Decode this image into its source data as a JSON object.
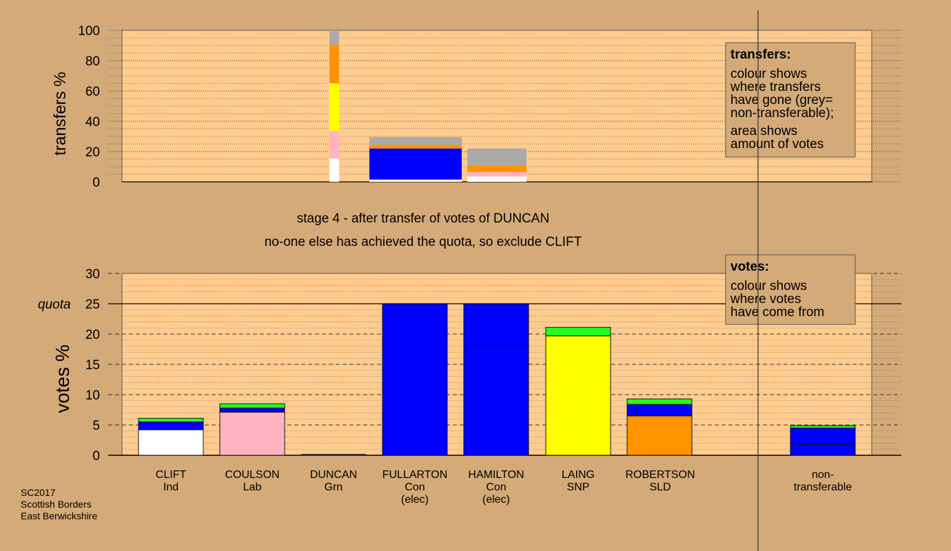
{
  "colors": {
    "background": "#d4aa78",
    "plot_bg": "#ffcc8f",
    "white": "#ffffff",
    "pink": "#ffb3c0",
    "blue": "#0000ff",
    "yellow": "#ffff00",
    "orange": "#ff9400",
    "green": "#22ff22",
    "grey": "#aaaaaa"
  },
  "stage_lines": {
    "line1": "stage 4 - after transfer of votes of DUNCAN",
    "line2": "no-one else has achieved the quota, so exclude CLIFT"
  },
  "footer": {
    "line1": "SC2017",
    "line2": "Scottish Borders",
    "line3": "East Berwickshire"
  },
  "chart_data": [
    {
      "type": "bar",
      "ylabel": "transfers %",
      "ylim": [
        0,
        100
      ],
      "yticks": [
        "0",
        "20",
        "40",
        "60",
        "80",
        "100"
      ],
      "legend": {
        "title": "transfers:",
        "lines": [
          "colour shows",
          "where transfers",
          "have gone (grey=",
          "non-transferable);",
          "area shows",
          "amount of votes"
        ]
      },
      "bars": [
        {
          "name": "DUNCAN",
          "width_class": "narrow",
          "segments": [
            {
              "color": "white",
              "from": 0,
              "to": 15.5
            },
            {
              "color": "pink",
              "from": 15.5,
              "to": 33.5
            },
            {
              "color": "yellow",
              "from": 33.5,
              "to": 65
            },
            {
              "color": "orange",
              "from": 65,
              "to": 90.5
            },
            {
              "color": "grey",
              "from": 90.5,
              "to": 100
            }
          ]
        },
        {
          "name": "FULLARTON",
          "width_class": "wide",
          "segments": [
            {
              "color": "white",
              "from": 0,
              "to": 1.5
            },
            {
              "color": "blue",
              "from": 1.5,
              "to": 22
            },
            {
              "color": "orange",
              "from": 22,
              "to": 24.5
            },
            {
              "color": "grey",
              "from": 24.5,
              "to": 29.5
            }
          ]
        },
        {
          "name": "HAMILTON",
          "width_class": "wide",
          "segments": [
            {
              "color": "white",
              "from": 0,
              "to": 3.5
            },
            {
              "color": "pink",
              "from": 3.5,
              "to": 6.5
            },
            {
              "color": "orange",
              "from": 6.5,
              "to": 11
            },
            {
              "color": "grey",
              "from": 11,
              "to": 22
            }
          ]
        }
      ]
    },
    {
      "type": "bar",
      "ylabel": "votes %",
      "ylim": [
        0,
        30
      ],
      "yticks": [
        "0",
        "5",
        "10",
        "15",
        "20",
        "25",
        "30"
      ],
      "quota": {
        "label": "quota",
        "value": 25
      },
      "legend": {
        "title": "votes:",
        "lines": [
          "colour shows",
          "where votes",
          "have come from"
        ]
      },
      "candidates": [
        {
          "name": "CLIFT",
          "party": "Ind",
          "note": "",
          "segments": [
            {
              "color": "white",
              "from": 0,
              "to": 4.2
            },
            {
              "color": "blue",
              "from": 4.2,
              "to": 5.5
            },
            {
              "color": "green",
              "from": 5.5,
              "to": 6.1
            }
          ]
        },
        {
          "name": "COULSON",
          "party": "Lab",
          "note": "",
          "segments": [
            {
              "color": "pink",
              "from": 0,
              "to": 7.1
            },
            {
              "color": "blue",
              "from": 7.1,
              "to": 7.8
            },
            {
              "color": "green",
              "from": 7.8,
              "to": 8.5
            }
          ]
        },
        {
          "name": "DUNCAN",
          "party": "Grn",
          "note": "",
          "segments": []
        },
        {
          "name": "FULLARTON",
          "party": "Con",
          "note": "(elec)",
          "segments": [
            {
              "color": "blue",
              "from": 0,
              "to": 25
            }
          ]
        },
        {
          "name": "HAMILTON",
          "party": "Con",
          "note": "(elec)",
          "segments": [
            {
              "color": "blue",
              "from": 0,
              "to": 18.1
            },
            {
              "color": "blue",
              "from": 18.1,
              "to": 25
            }
          ]
        },
        {
          "name": "LAING",
          "party": "SNP",
          "note": "",
          "segments": [
            {
              "color": "yellow",
              "from": 0,
              "to": 19.7
            },
            {
              "color": "green",
              "from": 19.7,
              "to": 21.1
            }
          ]
        },
        {
          "name": "ROBERTSON",
          "party": "SLD",
          "note": "",
          "segments": [
            {
              "color": "orange",
              "from": 0,
              "to": 6.5
            },
            {
              "color": "blue",
              "from": 6.5,
              "to": 8.4
            },
            {
              "color": "green",
              "from": 8.4,
              "to": 9.3
            }
          ]
        },
        {
          "name": "non-",
          "party": "transferable",
          "note": "",
          "segments": [
            {
              "color": "blue",
              "from": 0,
              "to": 1.8
            },
            {
              "color": "blue",
              "from": 1.8,
              "to": 4.5
            },
            {
              "color": "green",
              "from": 4.5,
              "to": 4.9
            }
          ]
        }
      ]
    }
  ]
}
